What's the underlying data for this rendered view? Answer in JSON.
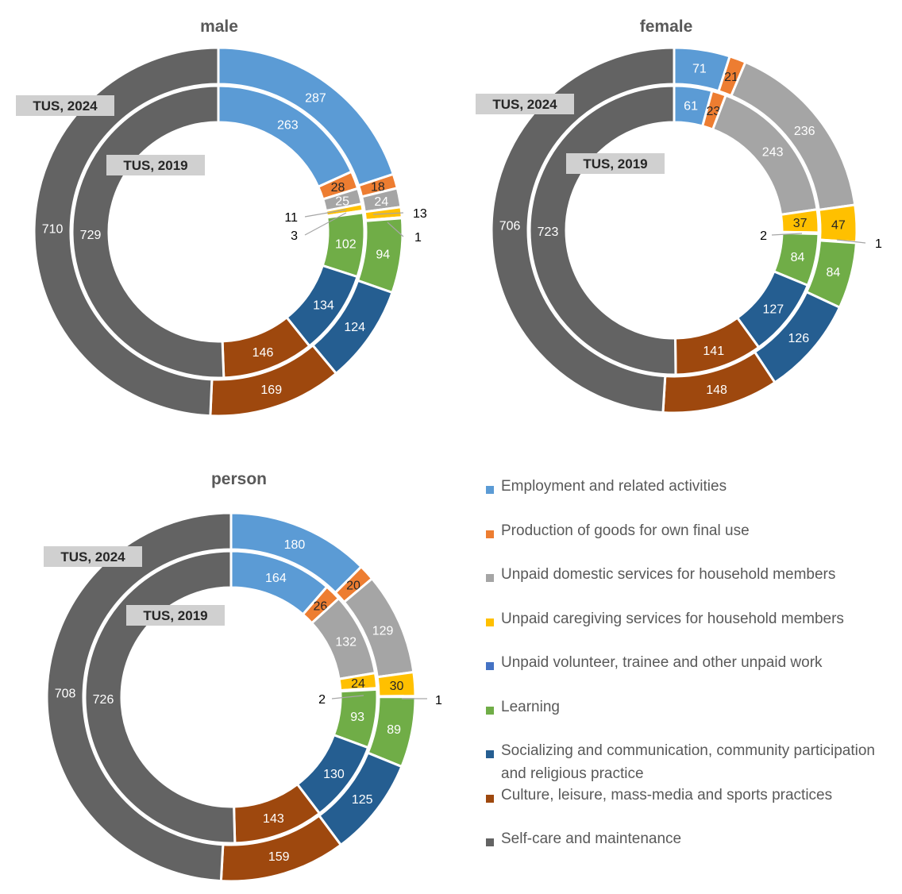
{
  "categories": [
    "Employment and related activities",
    "Production of goods for own final use",
    "Unpaid domestic services for household members",
    "Unpaid caregiving services for household members",
    "Unpaid volunteer, trainee and other unpaid work",
    "Learning",
    "Socializing and communication, community participation and religious practice",
    "Culture, leisure, mass-media and sports practices",
    "Self-care and maintenance"
  ],
  "legend": [
    {
      "label": "Employment and related activities",
      "color": "#5B9BD5"
    },
    {
      "label": "Production of goods for own final use",
      "color": "#ED7D31"
    },
    {
      "label": "Unpaid domestic services for household members",
      "color": "#A5A5A5"
    },
    {
      "label": "Unpaid caregiving services for household members",
      "color": "#FFC000"
    },
    {
      "label": "Unpaid volunteer, trainee and other unpaid work",
      "color": "#4472C4"
    },
    {
      "label": "Learning",
      "color": "#70AD47"
    },
    {
      "label": "Socializing and communication, community participation and religious practice",
      "color": "#255E91"
    },
    {
      "label": "Culture, leisure, mass-media and sports practices",
      "color": "#9E480E"
    },
    {
      "label": "Self-care and maintenance",
      "color": "#636363"
    }
  ],
  "chart_data": [
    {
      "type": "donut",
      "title": "male",
      "series": [
        {
          "name": "TUS, 2024",
          "values": [
            287,
            18,
            24,
            13,
            1,
            94,
            124,
            169,
            710
          ]
        },
        {
          "name": "TUS, 2019",
          "values": [
            263,
            28,
            25,
            11,
            3,
            102,
            134,
            146,
            729
          ]
        }
      ]
    },
    {
      "type": "donut",
      "title": "female",
      "series": [
        {
          "name": "TUS, 2024",
          "values": [
            71,
            21,
            236,
            47,
            1,
            84,
            126,
            148,
            706
          ]
        },
        {
          "name": "TUS, 2019",
          "values": [
            61,
            23,
            243,
            37,
            2,
            84,
            127,
            141,
            723
          ]
        }
      ]
    },
    {
      "type": "donut",
      "title": "person",
      "series": [
        {
          "name": "TUS, 2024",
          "values": [
            180,
            20,
            129,
            30,
            1,
            89,
            125,
            159,
            708
          ]
        },
        {
          "name": "TUS, 2019",
          "values": [
            164,
            26,
            132,
            24,
            2,
            93,
            130,
            143,
            726
          ]
        }
      ]
    }
  ]
}
